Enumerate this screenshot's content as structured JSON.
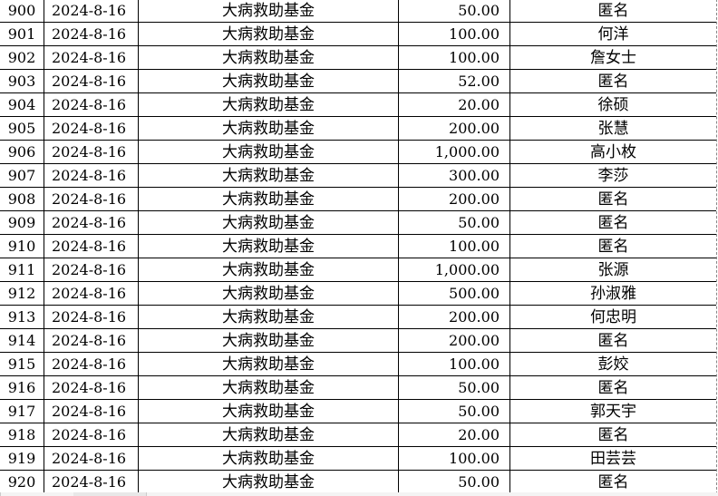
{
  "rows": [
    {
      "no": "900",
      "date": "2024-8-16",
      "fund": "大病救助基金",
      "amount": "50.00",
      "donor": "匿名"
    },
    {
      "no": "901",
      "date": "2024-8-16",
      "fund": "大病救助基金",
      "amount": "100.00",
      "donor": "何洋"
    },
    {
      "no": "902",
      "date": "2024-8-16",
      "fund": "大病救助基金",
      "amount": "100.00",
      "donor": "詹女士"
    },
    {
      "no": "903",
      "date": "2024-8-16",
      "fund": "大病救助基金",
      "amount": "52.00",
      "donor": "匿名"
    },
    {
      "no": "904",
      "date": "2024-8-16",
      "fund": "大病救助基金",
      "amount": "20.00",
      "donor": "徐硕"
    },
    {
      "no": "905",
      "date": "2024-8-16",
      "fund": "大病救助基金",
      "amount": "200.00",
      "donor": "张慧"
    },
    {
      "no": "906",
      "date": "2024-8-16",
      "fund": "大病救助基金",
      "amount": "1,000.00",
      "donor": "高小枚"
    },
    {
      "no": "907",
      "date": "2024-8-16",
      "fund": "大病救助基金",
      "amount": "300.00",
      "donor": "李莎"
    },
    {
      "no": "908",
      "date": "2024-8-16",
      "fund": "大病救助基金",
      "amount": "200.00",
      "donor": "匿名"
    },
    {
      "no": "909",
      "date": "2024-8-16",
      "fund": "大病救助基金",
      "amount": "50.00",
      "donor": "匿名"
    },
    {
      "no": "910",
      "date": "2024-8-16",
      "fund": "大病救助基金",
      "amount": "100.00",
      "donor": "匿名"
    },
    {
      "no": "911",
      "date": "2024-8-16",
      "fund": "大病救助基金",
      "amount": "1,000.00",
      "donor": "张源"
    },
    {
      "no": "912",
      "date": "2024-8-16",
      "fund": "大病救助基金",
      "amount": "500.00",
      "donor": "孙淑雅"
    },
    {
      "no": "913",
      "date": "2024-8-16",
      "fund": "大病救助基金",
      "amount": "200.00",
      "donor": "何忠明"
    },
    {
      "no": "914",
      "date": "2024-8-16",
      "fund": "大病救助基金",
      "amount": "200.00",
      "donor": "匿名"
    },
    {
      "no": "915",
      "date": "2024-8-16",
      "fund": "大病救助基金",
      "amount": "100.00",
      "donor": "彭姣"
    },
    {
      "no": "916",
      "date": "2024-8-16",
      "fund": "大病救助基金",
      "amount": "50.00",
      "donor": "匿名"
    },
    {
      "no": "917",
      "date": "2024-8-16",
      "fund": "大病救助基金",
      "amount": "50.00",
      "donor": "郭天宇"
    },
    {
      "no": "918",
      "date": "2024-8-16",
      "fund": "大病救助基金",
      "amount": "20.00",
      "donor": "匿名"
    },
    {
      "no": "919",
      "date": "2024-8-16",
      "fund": "大病救助基金",
      "amount": "100.00",
      "donor": "田芸芸"
    },
    {
      "no": "920",
      "date": "2024-8-16",
      "fund": "大病救助基金",
      "amount": "50.00",
      "donor": "匿名"
    }
  ]
}
